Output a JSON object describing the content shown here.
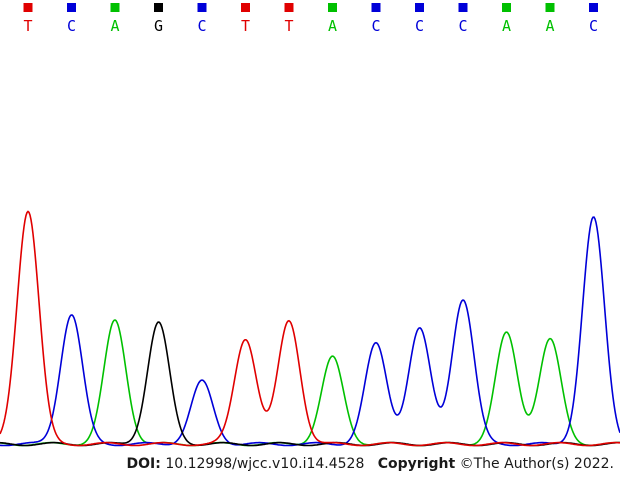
{
  "chart_data": {
    "type": "line",
    "title": "",
    "xlabel": "",
    "ylabel": "",
    "grid": false,
    "legend": "none",
    "base_colors": {
      "A": "#00c000",
      "C": "#0000d8",
      "G": "#000000",
      "T": "#e00000"
    },
    "bases": [
      "T",
      "C",
      "A",
      "G",
      "C",
      "T",
      "T",
      "A",
      "C",
      "C",
      "C",
      "A",
      "A",
      "C"
    ],
    "peak_heights": [
      243,
      135,
      128,
      126,
      65,
      110,
      128,
      90,
      104,
      120,
      151,
      115,
      109,
      235
    ],
    "ylim": [
      0,
      260
    ]
  },
  "footer": {
    "doi_label": "DOI:",
    "doi_value": "10.12998/wjcc.v10.i14.4528",
    "copyright_label": "Copyright",
    "copyright_text": "©The Author(s) 2022."
  }
}
